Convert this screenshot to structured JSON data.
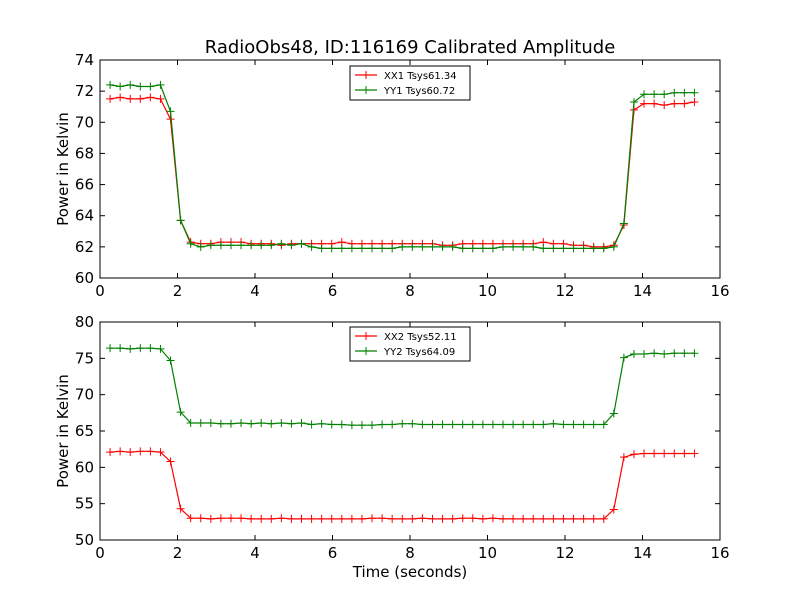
{
  "title": "RadioObs48, ID:116169 Calibrated Amplitude",
  "chart_data": [
    {
      "type": "line",
      "title": "RadioObs48, ID:116169 Calibrated Amplitude",
      "xlabel": "",
      "ylabel": "Power in Kelvin",
      "xlim": [
        0,
        16
      ],
      "ylim": [
        60,
        74
      ],
      "xticks": [
        0,
        2,
        4,
        6,
        8,
        10,
        12,
        14,
        16
      ],
      "yticks": [
        60,
        62,
        64,
        66,
        68,
        70,
        72,
        74
      ],
      "x": [
        0.26,
        0.52,
        0.78,
        1.04,
        1.3,
        1.56,
        1.82,
        2.08,
        2.34,
        2.6,
        2.86,
        3.12,
        3.38,
        3.64,
        3.9,
        4.16,
        4.42,
        4.68,
        4.94,
        5.2,
        5.46,
        5.72,
        5.98,
        6.24,
        6.5,
        6.76,
        7.02,
        7.28,
        7.54,
        7.8,
        8.06,
        8.32,
        8.58,
        8.84,
        9.1,
        9.36,
        9.62,
        9.88,
        10.14,
        10.4,
        10.66,
        10.92,
        11.18,
        11.44,
        11.7,
        11.96,
        12.22,
        12.48,
        12.74,
        13.0,
        13.26,
        13.52,
        13.78,
        14.04,
        14.3,
        14.56,
        14.82,
        15.08,
        15.34
      ],
      "legend_position": "top-center",
      "series": [
        {
          "name": "XX1 Tsys61.34",
          "color": "#ff0000",
          "values": [
            71.5,
            71.6,
            71.5,
            71.5,
            71.6,
            71.5,
            70.2,
            63.7,
            62.3,
            62.2,
            62.2,
            62.3,
            62.3,
            62.3,
            62.2,
            62.2,
            62.2,
            62.1,
            62.2,
            62.2,
            62.2,
            62.2,
            62.2,
            62.3,
            62.2,
            62.2,
            62.2,
            62.2,
            62.2,
            62.2,
            62.2,
            62.2,
            62.2,
            62.1,
            62.1,
            62.2,
            62.2,
            62.2,
            62.2,
            62.2,
            62.2,
            62.2,
            62.2,
            62.3,
            62.2,
            62.2,
            62.1,
            62.1,
            62.0,
            62.0,
            62.1,
            63.4,
            70.8,
            71.2,
            71.2,
            71.1,
            71.2,
            71.2,
            71.3
          ]
        },
        {
          "name": "YY1 Tsys60.72",
          "color": "#008000",
          "values": [
            72.4,
            72.3,
            72.4,
            72.3,
            72.3,
            72.4,
            70.7,
            63.7,
            62.2,
            62.0,
            62.1,
            62.1,
            62.1,
            62.1,
            62.1,
            62.1,
            62.1,
            62.2,
            62.1,
            62.2,
            62.0,
            61.9,
            61.9,
            61.9,
            61.9,
            61.9,
            61.9,
            61.9,
            61.9,
            62.0,
            62.0,
            62.0,
            62.0,
            62.0,
            62.0,
            61.9,
            61.9,
            61.9,
            61.9,
            62.0,
            62.0,
            62.0,
            62.0,
            61.9,
            61.9,
            61.9,
            61.9,
            61.9,
            61.9,
            61.9,
            62.0,
            63.5,
            71.3,
            71.8,
            71.8,
            71.8,
            71.9,
            71.9,
            71.9
          ]
        }
      ]
    },
    {
      "type": "line",
      "title": "",
      "xlabel": "Time (seconds)",
      "ylabel": "Power in Kelvin",
      "xlim": [
        0,
        16
      ],
      "ylim": [
        50,
        80
      ],
      "xticks": [
        0,
        2,
        4,
        6,
        8,
        10,
        12,
        14,
        16
      ],
      "yticks": [
        50,
        55,
        60,
        65,
        70,
        75,
        80
      ],
      "x": [
        0.26,
        0.52,
        0.78,
        1.04,
        1.3,
        1.56,
        1.82,
        2.08,
        2.34,
        2.6,
        2.86,
        3.12,
        3.38,
        3.64,
        3.9,
        4.16,
        4.42,
        4.68,
        4.94,
        5.2,
        5.46,
        5.72,
        5.98,
        6.24,
        6.5,
        6.76,
        7.02,
        7.28,
        7.54,
        7.8,
        8.06,
        8.32,
        8.58,
        8.84,
        9.1,
        9.36,
        9.62,
        9.88,
        10.14,
        10.4,
        10.66,
        10.92,
        11.18,
        11.44,
        11.7,
        11.96,
        12.22,
        12.48,
        12.74,
        13.0,
        13.26,
        13.52,
        13.78,
        14.04,
        14.3,
        14.56,
        14.82,
        15.08,
        15.34
      ],
      "legend_position": "top-center",
      "series": [
        {
          "name": "XX2 Tsys52.11",
          "color": "#ff0000",
          "values": [
            62.1,
            62.2,
            62.1,
            62.2,
            62.2,
            62.1,
            60.8,
            54.3,
            53.0,
            53.0,
            52.9,
            53.0,
            53.0,
            53.0,
            52.9,
            52.9,
            52.9,
            53.0,
            52.9,
            52.9,
            52.9,
            52.9,
            52.9,
            52.9,
            52.9,
            52.9,
            53.0,
            53.0,
            52.9,
            52.9,
            52.9,
            53.0,
            52.9,
            52.9,
            52.9,
            53.0,
            53.0,
            52.9,
            53.0,
            52.9,
            52.9,
            52.9,
            52.9,
            52.9,
            52.9,
            52.9,
            52.9,
            52.9,
            52.9,
            52.9,
            54.2,
            61.4,
            61.8,
            61.9,
            61.9,
            61.9,
            61.9,
            61.9,
            61.9
          ]
        },
        {
          "name": "YY2 Tsys64.09",
          "color": "#008000",
          "values": [
            76.4,
            76.4,
            76.3,
            76.4,
            76.4,
            76.3,
            74.7,
            67.6,
            66.1,
            66.1,
            66.1,
            66.0,
            66.0,
            66.1,
            66.0,
            66.1,
            66.0,
            66.1,
            66.0,
            66.1,
            65.9,
            66.0,
            65.9,
            65.9,
            65.8,
            65.8,
            65.8,
            65.9,
            65.9,
            66.0,
            66.0,
            65.9,
            65.9,
            65.9,
            65.9,
            65.9,
            65.9,
            65.9,
            65.9,
            65.9,
            65.9,
            65.9,
            65.9,
            65.9,
            66.0,
            65.9,
            65.9,
            65.9,
            65.9,
            65.9,
            67.4,
            75.1,
            75.6,
            75.6,
            75.7,
            75.6,
            75.7,
            75.7,
            75.7
          ]
        }
      ]
    }
  ]
}
